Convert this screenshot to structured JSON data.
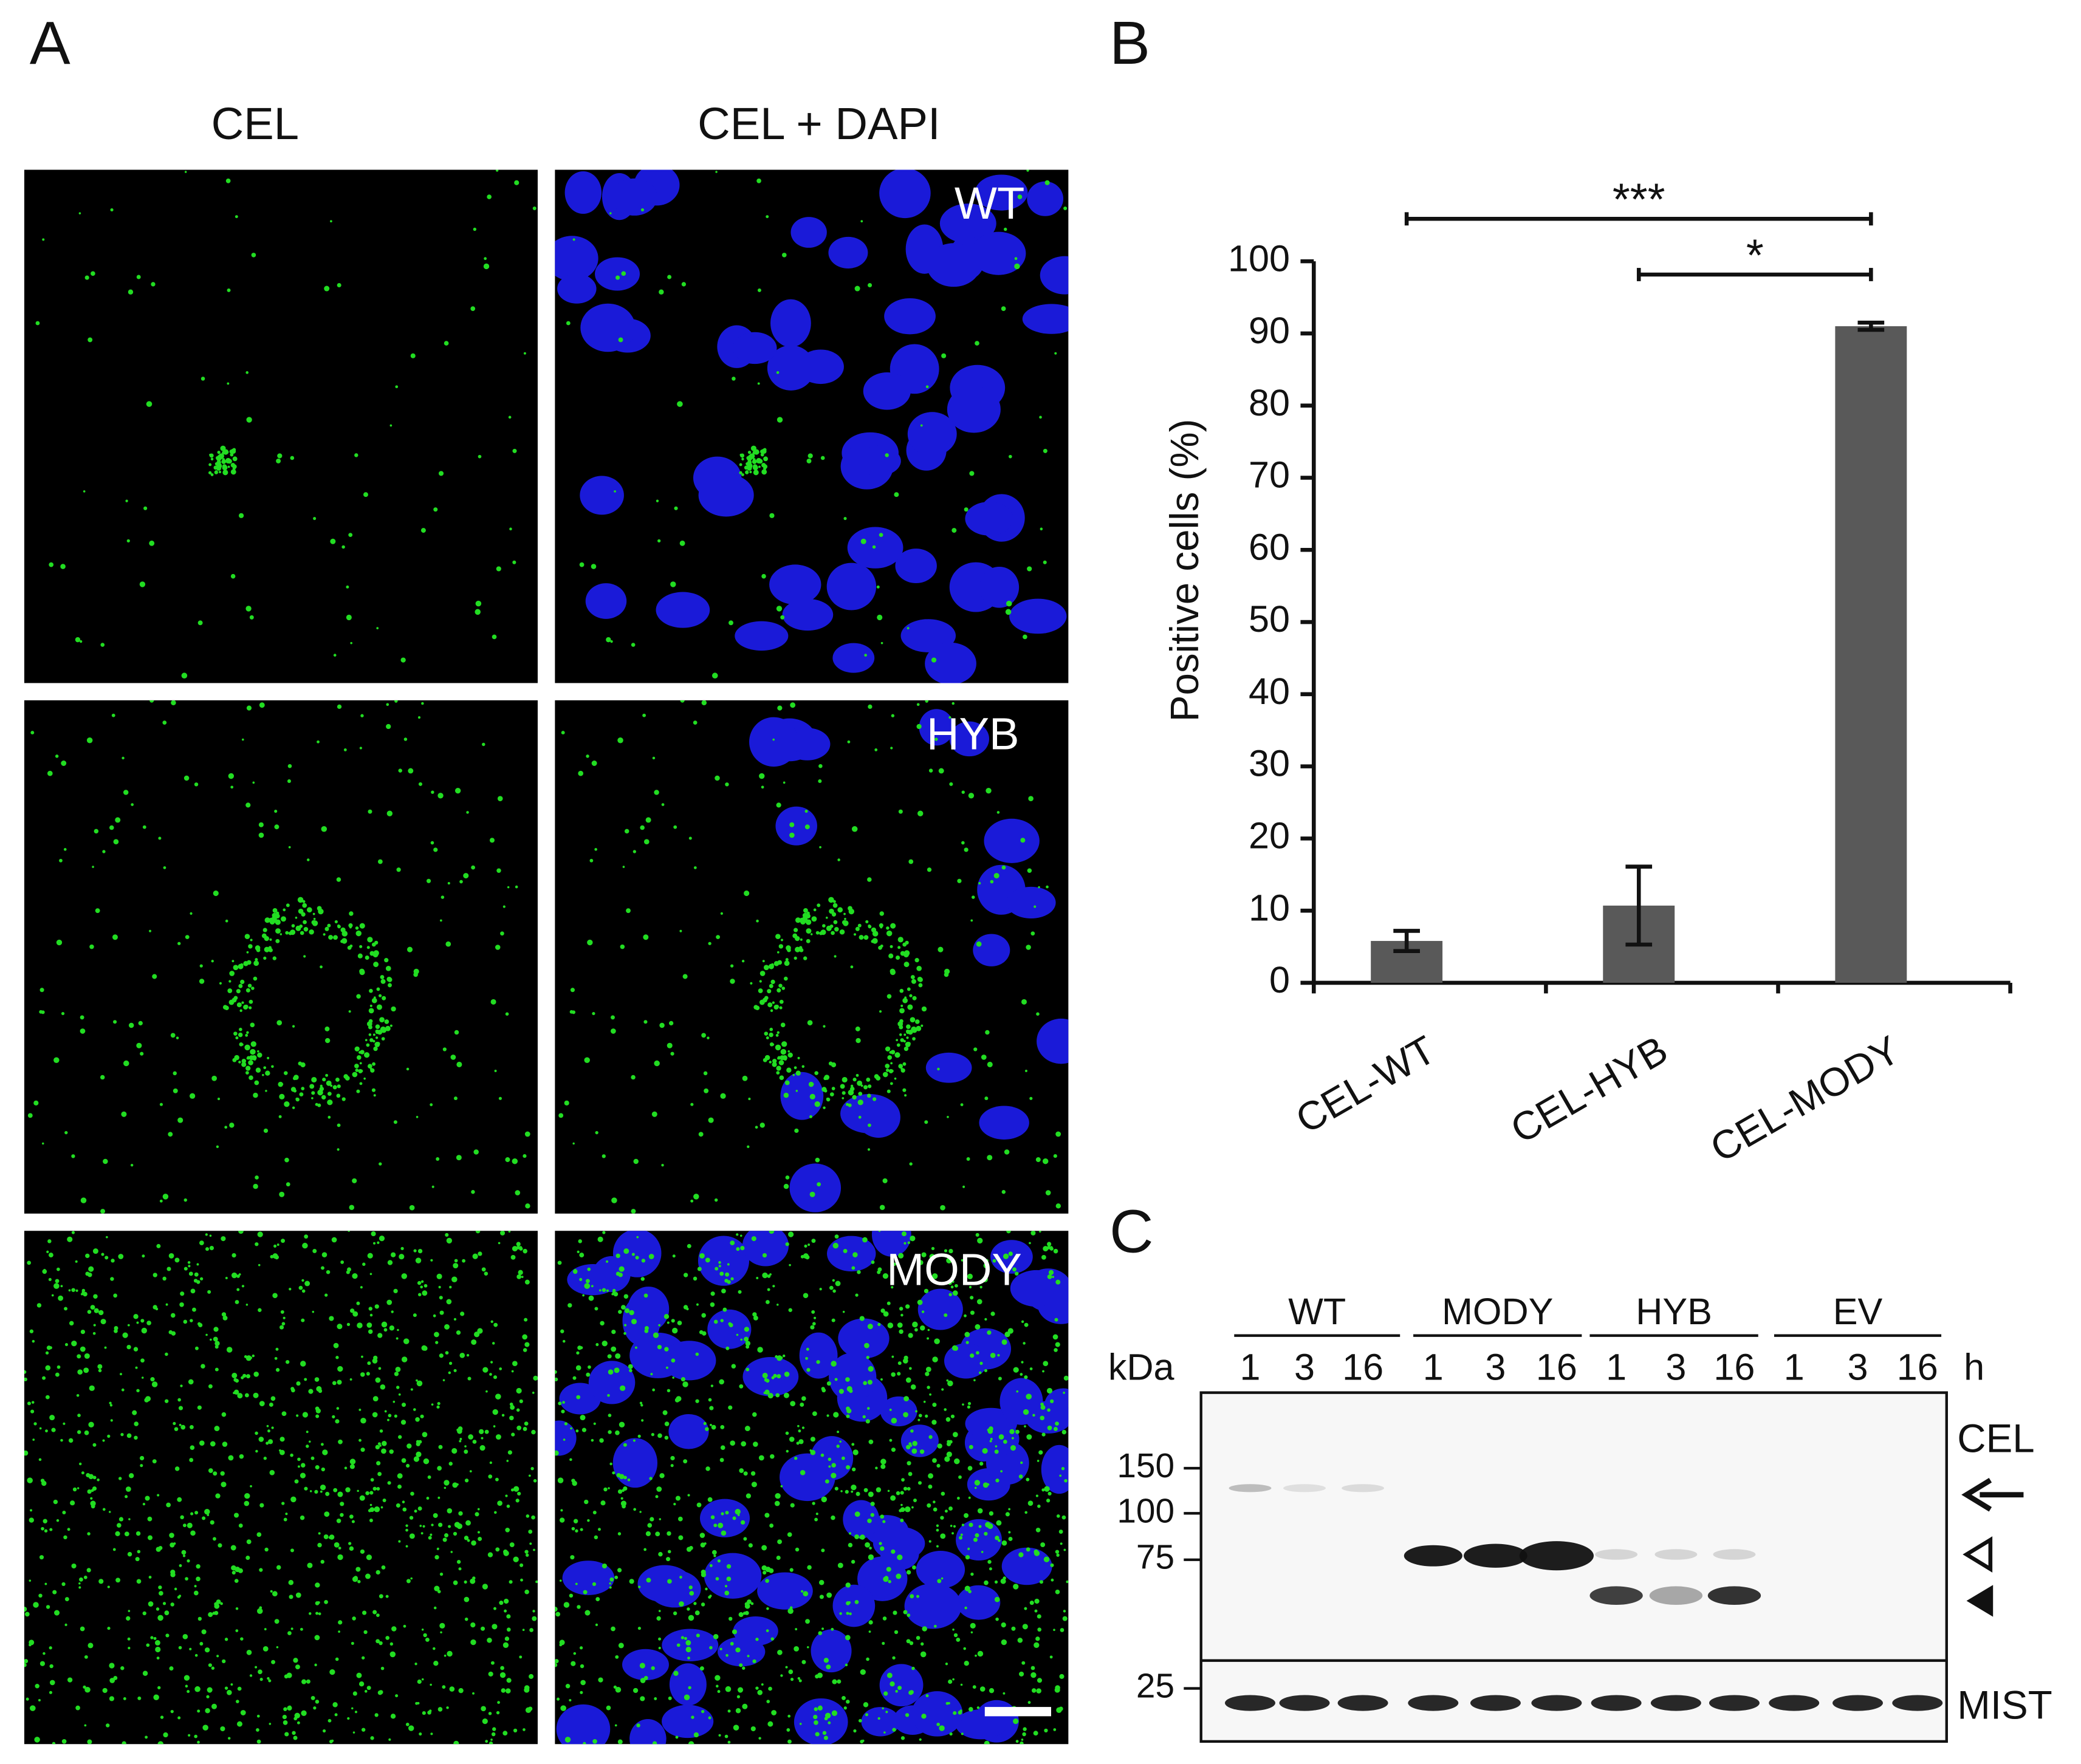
{
  "panel_a": {
    "label": "A",
    "columns": [
      "CEL",
      "CEL + DAPI"
    ],
    "rows": [
      "WT",
      "HYB",
      "MODY"
    ]
  },
  "chart_data": {
    "type": "bar",
    "label": "B",
    "ylabel": "Positive cells (%)",
    "categories": [
      "CEL-WT",
      "CEL-HYB",
      "CEL-MODY"
    ],
    "values": [
      5.8,
      10.7,
      91
    ],
    "errors": [
      1.4,
      5.4,
      0.5
    ],
    "color": "#595959",
    "ylim": [
      0,
      100
    ],
    "yticks": [
      0,
      10,
      20,
      30,
      40,
      50,
      60,
      70,
      80,
      90,
      100
    ],
    "comparisons": [
      {
        "label": "***",
        "pair": [
          "CEL-WT",
          "CEL-MODY"
        ]
      },
      {
        "label": "*",
        "pair": [
          "CEL-HYB",
          "CEL-MODY"
        ]
      }
    ]
  },
  "panel_c": {
    "label": "C",
    "groups": [
      "WT",
      "MODY",
      "HYB",
      "EV"
    ],
    "unit_mass": "kDa",
    "unit_time": "h",
    "lanes": [
      "1",
      "3",
      "16"
    ],
    "markers": [
      "150",
      "100",
      "75",
      "25"
    ],
    "blots": [
      "CEL",
      "MIST"
    ]
  }
}
